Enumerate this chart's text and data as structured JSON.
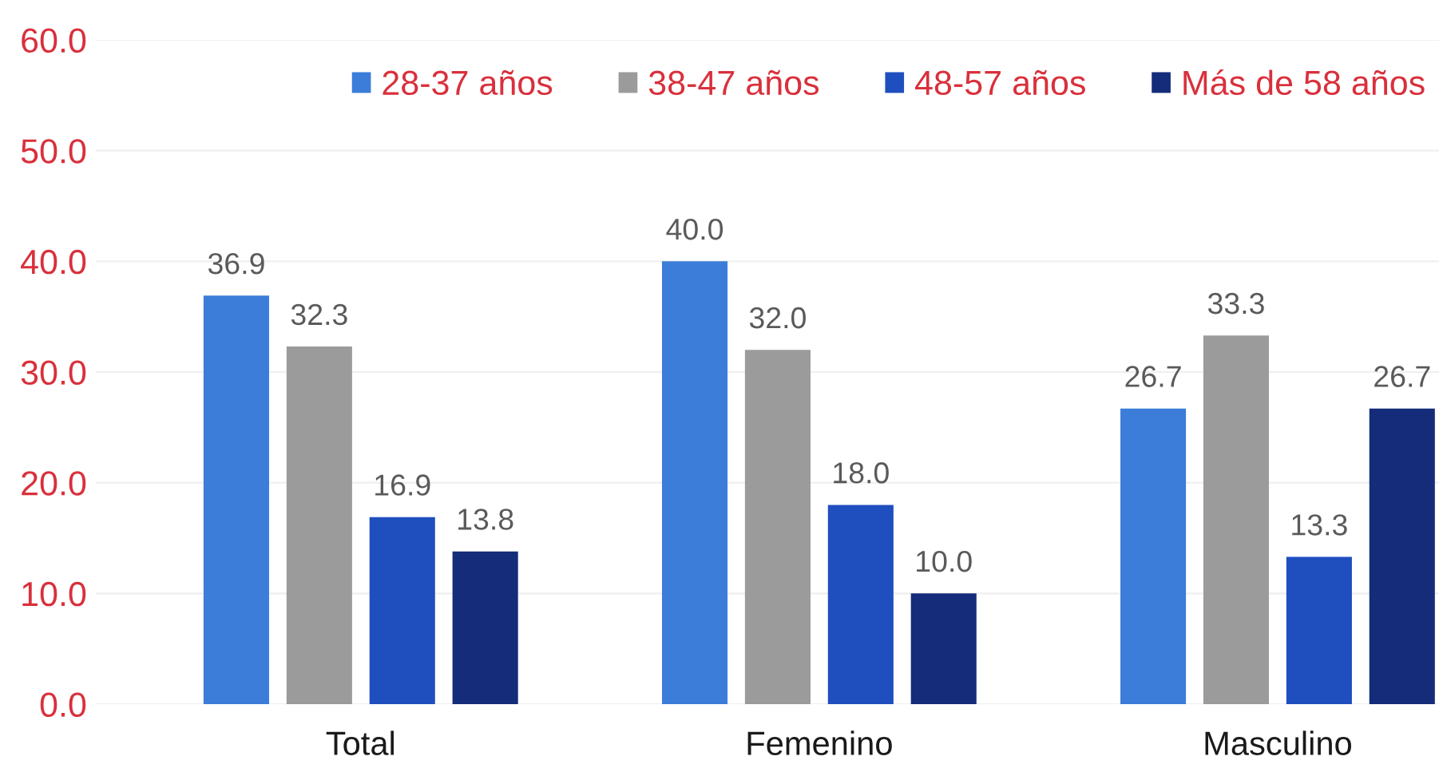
{
  "chart_data": {
    "type": "bar",
    "categories": [
      "Total",
      "Femenino",
      "Masculino"
    ],
    "series": [
      {
        "name": "28-37 años",
        "color": "#3b7dd8",
        "values": [
          36.9,
          40.0,
          26.7
        ],
        "value_labels": [
          "36.9",
          "40.0",
          "26.7"
        ]
      },
      {
        "name": "38-47 años",
        "color": "#9b9b9b",
        "values": [
          32.3,
          32.0,
          33.3
        ],
        "value_labels": [
          "32.3",
          "32.0",
          "33.3"
        ]
      },
      {
        "name": "48-57 años",
        "color": "#1f4fbf",
        "values": [
          16.9,
          18.0,
          13.3
        ],
        "value_labels": [
          "16.9",
          "18.0",
          "13.3"
        ]
      },
      {
        "name": "Más de 58 años",
        "color": "#152c7a",
        "values": [
          13.8,
          10.0,
          26.7
        ],
        "value_labels": [
          "13.8",
          "10.0",
          "26.7"
        ]
      }
    ],
    "ylim": [
      0,
      60
    ],
    "yticks": [
      {
        "value": 0,
        "label": "0.0"
      },
      {
        "value": 10,
        "label": "10.0"
      },
      {
        "value": 20,
        "label": "20.0"
      },
      {
        "value": 30,
        "label": "30.0"
      },
      {
        "value": 40,
        "label": "40.0"
      },
      {
        "value": 50,
        "label": "50.0"
      },
      {
        "value": 60,
        "label": "60.0"
      }
    ],
    "grid": "y",
    "legend": "top right"
  }
}
